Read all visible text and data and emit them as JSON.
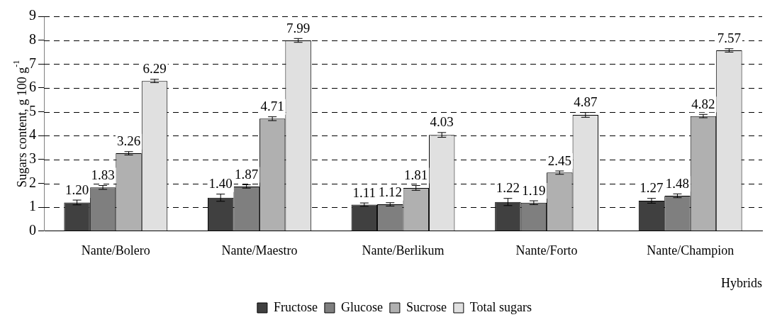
{
  "chart_data": {
    "type": "bar",
    "ylabel": "Sugars content, g 100 g$^{-1}$",
    "xlabel": "Hybrids",
    "categories": [
      "Nante/Bolero",
      "Nante/Maestro",
      "Nante/Berlikum",
      "Nante/Forto",
      "Nante/Champion"
    ],
    "series": [
      {
        "name": "Fructose",
        "color": "#404040",
        "values": [
          1.2,
          1.4,
          1.11,
          1.22,
          1.27
        ],
        "value_labels": [
          "1.20",
          "1.40",
          "1.11",
          "1.22",
          "1.27"
        ],
        "errors": [
          0.1,
          0.15,
          0.07,
          0.15,
          0.1
        ]
      },
      {
        "name": "Glucose",
        "color": "#7f7f7f",
        "values": [
          1.83,
          1.87,
          1.12,
          1.19,
          1.48
        ],
        "value_labels": [
          "1.83",
          "1.87",
          "1.12",
          "1.19",
          "1.48"
        ],
        "errors": [
          0.08,
          0.07,
          0.07,
          0.08,
          0.08
        ]
      },
      {
        "name": "Sucrose",
        "color": "#b0b0b0",
        "values": [
          3.26,
          4.71,
          1.81,
          2.45,
          4.82
        ],
        "value_labels": [
          "3.26",
          "4.71",
          "1.81",
          "2.45",
          "4.82"
        ],
        "errors": [
          0.07,
          0.08,
          0.1,
          0.07,
          0.07
        ]
      },
      {
        "name": "Total sugars",
        "color": "#e0e0e0",
        "values": [
          6.29,
          7.99,
          4.03,
          4.87,
          7.57
        ],
        "value_labels": [
          "6.29",
          "7.99",
          "4.03",
          "4.87",
          "7.57"
        ],
        "errors": [
          0.07,
          0.08,
          0.1,
          0.1,
          0.07
        ]
      }
    ],
    "ylim": [
      0,
      9
    ],
    "yticks": [
      0,
      1,
      2,
      3,
      4,
      5,
      6,
      7,
      8,
      9
    ],
    "grid": "y",
    "legend": "bottom"
  }
}
